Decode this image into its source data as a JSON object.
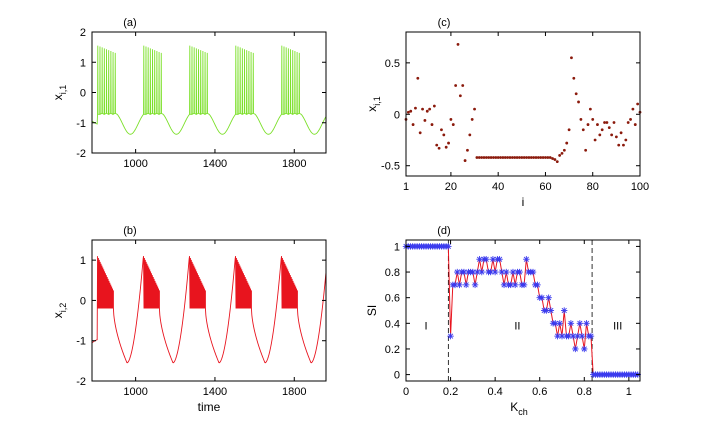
{
  "chart_data": [
    {
      "id": "a",
      "type": "line",
      "panel_label": "(a)",
      "ylabel_main": "x",
      "ylabel_sub": "i,1",
      "xlabel": "",
      "xlim": [
        780,
        1960
      ],
      "ylim": [
        -2,
        2
      ],
      "xticks": [
        "1000",
        "1400",
        "1800"
      ],
      "xtick_values": [
        1000,
        1400,
        1800
      ],
      "yticks": [
        "-2",
        "-1",
        "0",
        "1",
        "2"
      ],
      "ytick_values": [
        -2,
        -1,
        0,
        1,
        2
      ],
      "color": "#7ce02a",
      "waveform": {
        "burst_period": 232,
        "first_burst_start": 808,
        "spikes_per_burst": 9,
        "spike_interval": 11,
        "spike_peak": 1.55,
        "spike_trough": -0.72,
        "quiescent_min": -1.38,
        "quiescent_start": -0.72
      }
    },
    {
      "id": "b",
      "type": "line",
      "panel_label": "(b)",
      "ylabel_main": "x",
      "ylabel_sub": "i,2",
      "xlabel": "time",
      "xlim": [
        780,
        1960
      ],
      "ylim": [
        -2,
        1.5
      ],
      "xticks": [
        "1000",
        "1400",
        "1800"
      ],
      "xtick_values": [
        1000,
        1400,
        1800
      ],
      "yticks": [
        "-2",
        "-1",
        "0",
        "1"
      ],
      "ytick_values": [
        -2,
        -1,
        0,
        1
      ],
      "color": "#e8141e",
      "waveform": {
        "burst_period": 232,
        "first_burst_start": 808,
        "burst_duration": 80,
        "burst_upper_start": 1.1,
        "burst_upper_end": 0.25,
        "burst_lower": -0.2,
        "quiescent_min": -1.55,
        "start_value": -1.05
      }
    },
    {
      "id": "c",
      "type": "scatter",
      "panel_label": "(c)",
      "ylabel_main": "x",
      "ylabel_sub": "i,1",
      "xlabel": "i",
      "xlim": [
        1,
        100
      ],
      "ylim": [
        -0.6,
        0.8
      ],
      "xticks": [
        "1",
        "20",
        "40",
        "60",
        "80",
        "100"
      ],
      "xtick_values": [
        1,
        20,
        40,
        60,
        80,
        100
      ],
      "yticks": [
        "-0.5",
        "0",
        "0.5"
      ],
      "ytick_values": [
        -0.5,
        0,
        0.5
      ],
      "color": "#8b1a0c",
      "x": [
        1,
        2,
        3,
        4,
        5,
        6,
        7,
        8,
        9,
        10,
        11,
        12,
        13,
        14,
        15,
        16,
        17,
        18,
        19,
        20,
        21,
        22,
        23,
        24,
        25,
        26,
        27,
        28,
        29,
        30,
        31,
        32,
        33,
        34,
        35,
        36,
        37,
        38,
        39,
        40,
        41,
        42,
        43,
        44,
        45,
        46,
        47,
        48,
        49,
        50,
        51,
        52,
        53,
        54,
        55,
        56,
        57,
        58,
        59,
        60,
        61,
        62,
        63,
        64,
        65,
        66,
        67,
        68,
        69,
        70,
        71,
        72,
        73,
        74,
        75,
        76,
        77,
        78,
        79,
        80,
        81,
        82,
        83,
        84,
        85,
        86,
        87,
        88,
        89,
        90,
        91,
        92,
        93,
        94,
        95,
        96,
        97,
        98,
        99,
        100
      ],
      "y": [
        -0.05,
        0.02,
        0.03,
        -0.1,
        0.06,
        0.35,
        -0.18,
        0.05,
        -0.06,
        0.03,
        0.05,
        -0.1,
        0.08,
        -0.3,
        -0.33,
        -0.15,
        -0.2,
        -0.32,
        -0.28,
        -0.05,
        -0.1,
        0.28,
        0.68,
        0.18,
        0.28,
        -0.45,
        -0.35,
        -0.2,
        -0.05,
        0.05,
        -0.42,
        -0.42,
        -0.42,
        -0.42,
        -0.42,
        -0.42,
        -0.42,
        -0.42,
        -0.42,
        -0.42,
        -0.42,
        -0.42,
        -0.42,
        -0.42,
        -0.42,
        -0.42,
        -0.42,
        -0.42,
        -0.42,
        -0.42,
        -0.42,
        -0.42,
        -0.42,
        -0.42,
        -0.42,
        -0.42,
        -0.42,
        -0.42,
        -0.42,
        -0.42,
        -0.42,
        -0.42,
        -0.43,
        -0.44,
        -0.46,
        -0.4,
        -0.38,
        -0.35,
        -0.28,
        -0.15,
        0.55,
        0.35,
        0.2,
        0.12,
        -0.05,
        -0.15,
        -0.35,
        -0.1,
        0.05,
        -0.05,
        -0.25,
        -0.1,
        -0.2,
        -0.15,
        -0.08,
        -0.08,
        -0.13,
        -0.2,
        -0.08,
        -0.22,
        -0.3,
        -0.18,
        -0.3,
        -0.25,
        -0.08,
        -0.05,
        0.05,
        -0.1,
        0.1,
        0.02
      ]
    },
    {
      "id": "d",
      "type": "line",
      "panel_label": "(d)",
      "ylabel_main": "SI",
      "xlabel_main": "K",
      "xlabel_sub": "ch",
      "xlim": [
        0,
        1.05
      ],
      "ylim": [
        -0.05,
        1.05
      ],
      "xticks": [
        "0",
        "0.2",
        "0.4",
        "0.6",
        "0.8",
        "1"
      ],
      "xtick_values": [
        0,
        0.2,
        0.4,
        0.6,
        0.8,
        1
      ],
      "yticks": [
        "0",
        "0.2",
        "0.4",
        "0.6",
        "0.8",
        "1"
      ],
      "ytick_values": [
        0,
        0.2,
        0.4,
        0.6,
        0.8,
        1
      ],
      "line_color": "#e8141e",
      "marker_color": "#3a3aee",
      "dashed_lines": [
        0.19,
        0.835
      ],
      "regions": [
        {
          "label": "I",
          "x": 0.09,
          "y": 0.35
        },
        {
          "label": "II",
          "x": 0.5,
          "y": 0.35
        },
        {
          "label": "III",
          "x": 0.95,
          "y": 0.35
        }
      ],
      "x": [
        0,
        0.01,
        0.02,
        0.03,
        0.04,
        0.05,
        0.06,
        0.07,
        0.08,
        0.09,
        0.1,
        0.11,
        0.12,
        0.13,
        0.14,
        0.15,
        0.16,
        0.17,
        0.18,
        0.19,
        0.2,
        0.21,
        0.22,
        0.23,
        0.24,
        0.25,
        0.26,
        0.27,
        0.28,
        0.29,
        0.3,
        0.31,
        0.32,
        0.33,
        0.34,
        0.35,
        0.36,
        0.37,
        0.38,
        0.39,
        0.4,
        0.41,
        0.42,
        0.43,
        0.44,
        0.45,
        0.46,
        0.47,
        0.48,
        0.49,
        0.5,
        0.51,
        0.52,
        0.53,
        0.54,
        0.55,
        0.56,
        0.57,
        0.58,
        0.59,
        0.6,
        0.61,
        0.62,
        0.63,
        0.64,
        0.65,
        0.66,
        0.67,
        0.68,
        0.69,
        0.7,
        0.71,
        0.72,
        0.73,
        0.74,
        0.75,
        0.76,
        0.77,
        0.78,
        0.79,
        0.8,
        0.81,
        0.82,
        0.83,
        0.84,
        0.85,
        0.86,
        0.87,
        0.88,
        0.89,
        0.9,
        0.91,
        0.92,
        0.93,
        0.94,
        0.95,
        0.96,
        0.97,
        0.98,
        0.99,
        1.0,
        1.01,
        1.02,
        1.03,
        1.04
      ],
      "y": [
        1,
        1,
        1,
        1,
        1,
        1,
        1,
        1,
        1,
        1,
        1,
        1,
        1,
        1,
        1,
        1,
        1,
        1,
        1,
        1,
        0.3,
        0.7,
        0.7,
        0.8,
        0.7,
        0.8,
        0.8,
        0.7,
        0.8,
        0.8,
        0.8,
        0.7,
        0.8,
        0.9,
        0.8,
        0.9,
        0.9,
        0.8,
        0.8,
        0.9,
        0.8,
        0.9,
        0.9,
        0.8,
        0.7,
        0.8,
        0.7,
        0.7,
        0.8,
        0.7,
        0.8,
        0.8,
        0.7,
        0.7,
        0.9,
        0.8,
        0.8,
        0.8,
        0.7,
        0.7,
        0.6,
        0.6,
        0.5,
        0.5,
        0.6,
        0.5,
        0.4,
        0.4,
        0.3,
        0.4,
        0.3,
        0.5,
        0.3,
        0.3,
        0.4,
        0.3,
        0.2,
        0.3,
        0.4,
        0.3,
        0.2,
        0.4,
        0.3,
        0.3,
        0,
        0,
        0,
        0,
        0,
        0,
        0,
        0,
        0,
        0,
        0,
        0,
        0,
        0,
        0,
        0,
        0,
        0,
        0,
        0,
        0
      ]
    }
  ]
}
